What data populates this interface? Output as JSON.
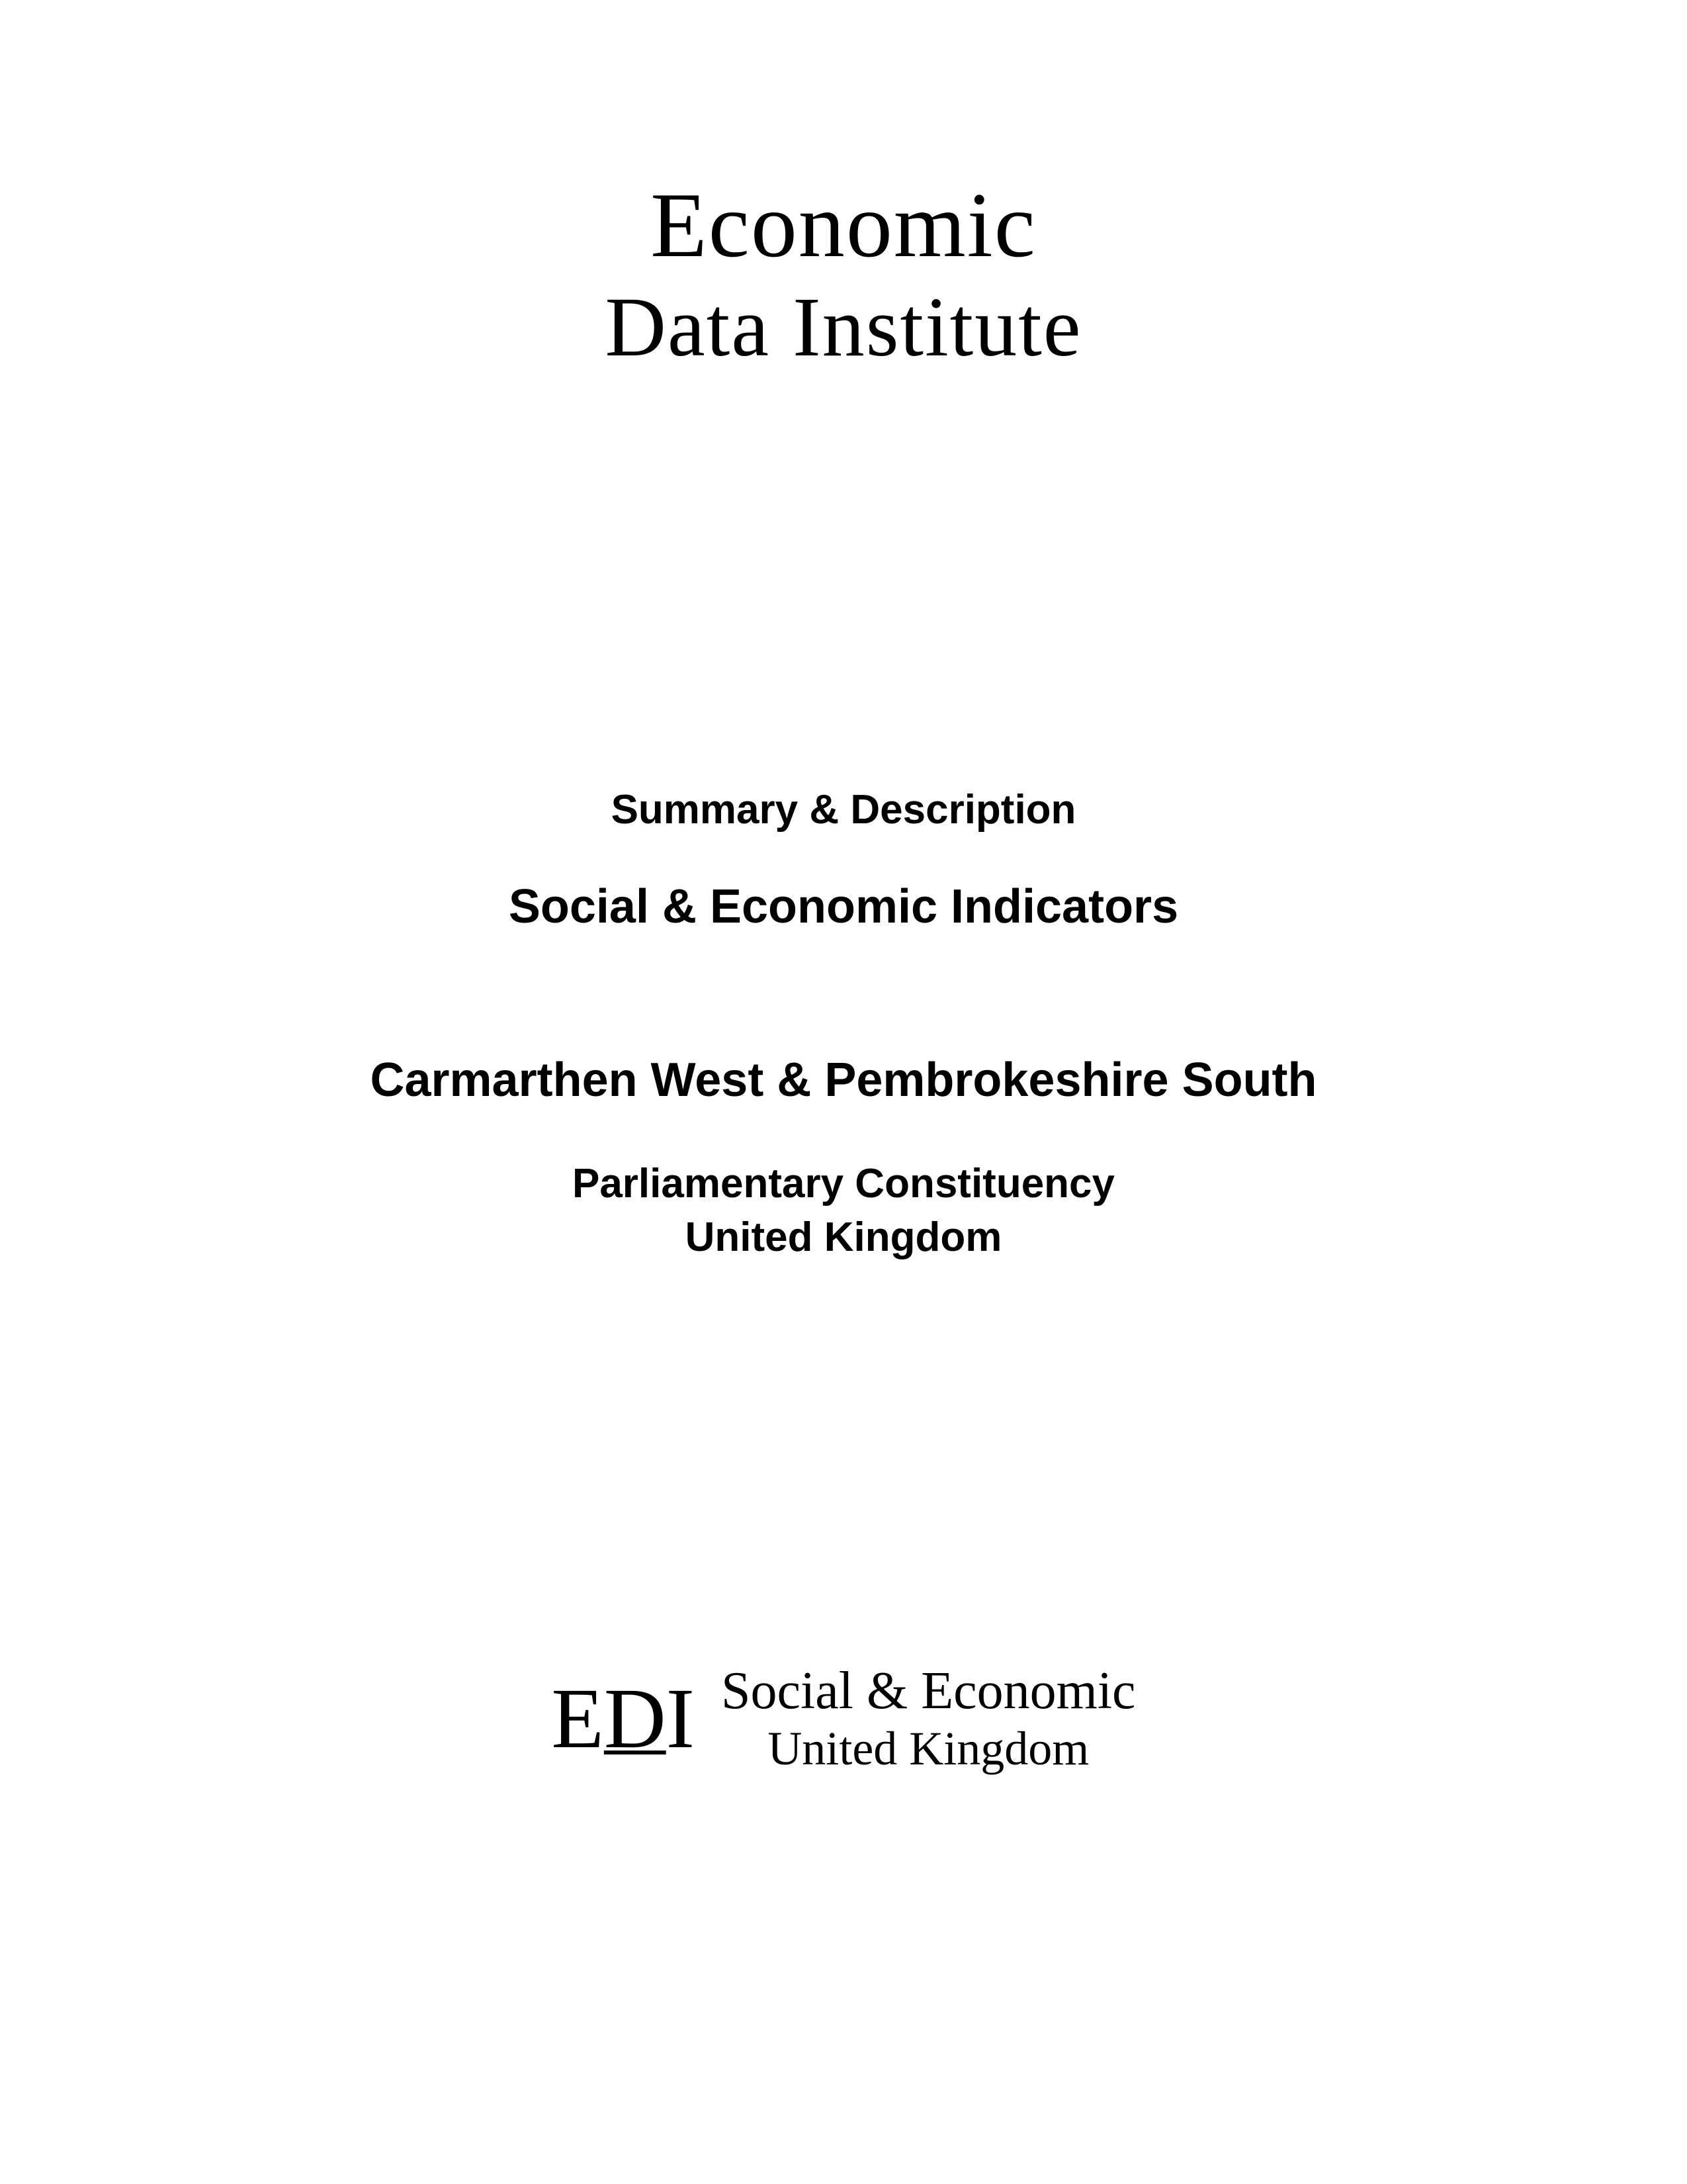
{
  "top_logo": {
    "line1": "Economic",
    "line2": "Data Institute"
  },
  "middle": {
    "summary_desc": "Summary & Description",
    "indicators_title": "Social & Economic Indicators",
    "constituency_name": "Carmarthen West & Pembrokeshire South",
    "constituency_type": "Parliamentary Constituency",
    "country": "United Kingdom"
  },
  "bottom_logo": {
    "mark_e": "E",
    "mark_d": "D",
    "mark_i": "I",
    "text_line1": "Social & Economic",
    "text_line2": "United Kingdom"
  },
  "colors": {
    "background": "#ffffff",
    "text": "#000000"
  }
}
